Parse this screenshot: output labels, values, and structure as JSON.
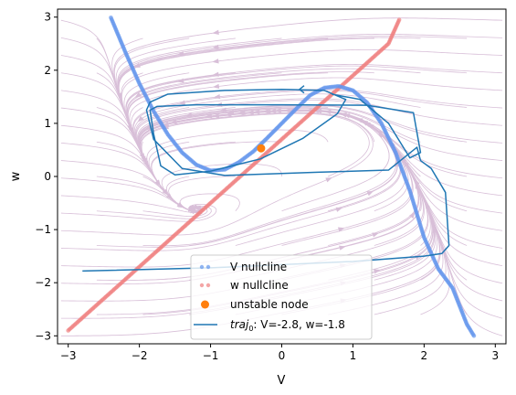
{
  "chart_data": {
    "type": "line",
    "title": "",
    "xlabel": "V",
    "ylabel": "w",
    "xlim": [
      -3.15,
      3.15
    ],
    "ylim": [
      -3.15,
      3.15
    ],
    "x_ticks": [
      -3,
      -2,
      -1,
      0,
      1,
      2,
      3
    ],
    "y_ticks": [
      -3,
      -2,
      -1,
      0,
      1,
      2,
      3
    ],
    "x_tick_labels": [
      "−3",
      "−2",
      "−1",
      "0",
      "1",
      "2",
      "3"
    ],
    "y_tick_labels": [
      "−3",
      "−2",
      "−1",
      "0",
      "1",
      "2",
      "3"
    ],
    "grid": false,
    "legend_position": "lower-center",
    "colors": {
      "v_nullcline": "#6495ed",
      "w_nullcline": "#f08080",
      "node": "#ff7f0e",
      "trajectory": "#1f77b4",
      "streamlines": "#d8bfd8"
    },
    "series": [
      {
        "name": "V nullcline",
        "style": "points",
        "x": [
          -2.4,
          -2.2,
          -2.0,
          -1.8,
          -1.6,
          -1.4,
          -1.2,
          -1.0,
          -0.8,
          -0.6,
          -0.4,
          -0.2,
          0.0,
          0.2,
          0.4,
          0.6,
          0.8,
          1.0,
          1.2,
          1.4,
          1.6,
          1.8,
          2.0,
          2.2,
          2.4,
          2.6,
          2.7
        ],
        "y": [
          2.99,
          2.35,
          1.75,
          1.23,
          0.79,
          0.45,
          0.22,
          0.11,
          0.13,
          0.27,
          0.47,
          0.73,
          1.0,
          1.27,
          1.53,
          1.67,
          1.7,
          1.62,
          1.39,
          1.0,
          0.45,
          -0.27,
          -1.15,
          -1.74,
          -2.1,
          -2.78,
          -3.0
        ]
      },
      {
        "name": "w nullcline",
        "style": "points",
        "x": [
          -3.0,
          -2.5,
          -2.0,
          -1.5,
          -1.0,
          -0.5,
          0.0,
          0.5,
          1.0,
          1.5,
          1.65
        ],
        "y": [
          -2.9,
          -2.3,
          -1.7,
          -1.1,
          -0.5,
          0.1,
          0.7,
          1.3,
          1.9,
          2.5,
          2.95
        ]
      },
      {
        "name": "unstable node",
        "style": "marker",
        "x": [
          -0.29
        ],
        "y": [
          0.53
        ]
      },
      {
        "name": "$traj_0$: V=-2.8, w=-1.8",
        "legend_text": "traj",
        "legend_subscript": "0",
        "legend_suffix": ": V=-2.8, w=-1.8",
        "style": "line",
        "x": [
          -2.8,
          -1.0,
          1.0,
          2.0,
          2.25,
          2.35,
          2.3,
          2.1,
          1.95,
          1.9,
          1.5,
          0.5,
          -0.8,
          -1.4,
          -1.8,
          -1.9,
          -1.85,
          -1.6,
          -0.8,
          0.0,
          0.6,
          0.9,
          0.78,
          0.3,
          -0.3,
          -1.0,
          -1.5,
          -1.7,
          -1.8,
          -1.85,
          -1.75,
          -1.2,
          0.0,
          1.2,
          1.85,
          1.95,
          1.8,
          1.5,
          1.1,
          0.7
        ],
        "y": [
          -1.78,
          -1.72,
          -1.6,
          -1.5,
          -1.45,
          -1.3,
          -0.3,
          0.15,
          0.3,
          0.55,
          0.12,
          0.08,
          0.02,
          0.15,
          0.7,
          1.25,
          1.4,
          1.55,
          1.62,
          1.64,
          1.62,
          1.45,
          1.18,
          0.72,
          0.33,
          0.1,
          0.03,
          0.2,
          0.8,
          1.25,
          1.32,
          1.35,
          1.35,
          1.34,
          1.2,
          0.45,
          0.35,
          1.0,
          1.45,
          1.55
        ]
      }
    ]
  }
}
